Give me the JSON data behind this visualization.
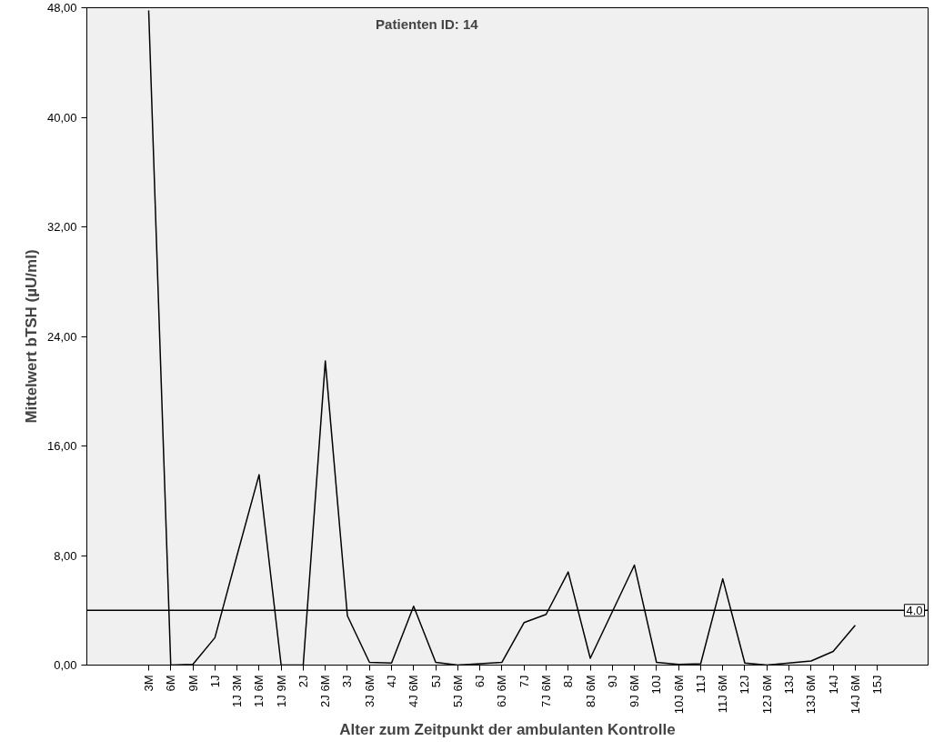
{
  "chart_data": {
    "type": "line",
    "title": "Patienten ID: 14",
    "xlabel": "Alter zum Zeitpunkt der ambulanten Kontrolle",
    "ylabel": "Mittelwert bTSH (µU/ml)",
    "categories": [
      "3M",
      "6M",
      "9M",
      "1J",
      "1J 3M",
      "1J 6M",
      "1J 9M",
      "2J",
      "2J 6M",
      "3J",
      "3J 6M",
      "4J",
      "4J 6M",
      "5J",
      "5J 6M",
      "6J",
      "6J 6M",
      "7J",
      "7J 6M",
      "8J",
      "8J 6M",
      "9J",
      "9J 6M",
      "10J",
      "10J 6M",
      "11J",
      "11J 6M",
      "12J",
      "12J 6M",
      "13J",
      "13J 6M",
      "14J",
      "14J 6M",
      "15J"
    ],
    "series": [
      {
        "color": "#000000",
        "values": [
          47.8,
          0,
          0.05,
          2.0,
          8.0,
          13.9,
          0,
          0,
          22.2,
          3.6,
          0.2,
          0.15,
          4.3,
          0.2,
          0,
          0.1,
          0.2,
          3.1,
          3.7,
          6.8,
          0.5,
          3.9,
          7.3,
          0.2,
          0.05,
          0.1,
          6.3,
          0.15,
          0,
          0.15,
          0.3,
          1.0,
          2.9,
          null
        ]
      }
    ],
    "ylim": [
      0,
      48
    ],
    "yticks": [
      {
        "value": 0,
        "label": "0,00"
      },
      {
        "value": 8,
        "label": "8,00"
      },
      {
        "value": 16,
        "label": "16,00"
      },
      {
        "value": 24,
        "label": "24,00"
      },
      {
        "value": 32,
        "label": "32,00"
      },
      {
        "value": 40,
        "label": "40,00"
      },
      {
        "value": 48,
        "label": "48,00"
      }
    ],
    "ref_lines": [
      {
        "axis": "y",
        "value": 4.0,
        "label": "4.0",
        "color": "#000000"
      }
    ],
    "grid": false,
    "marker": "none",
    "line_style": "solid"
  }
}
